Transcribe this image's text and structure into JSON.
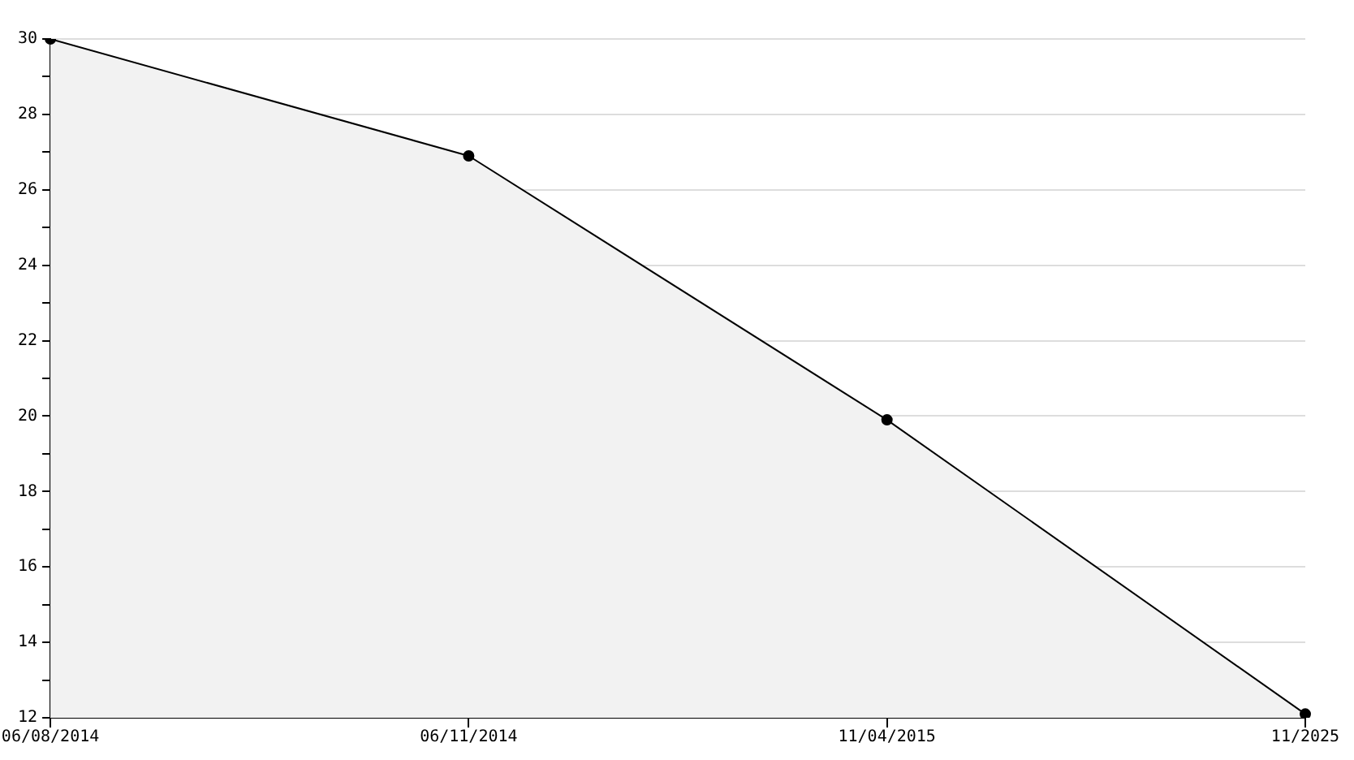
{
  "chart_data": {
    "type": "area",
    "categories": [
      "06/08/2014",
      "06/11/2014",
      "11/04/2015",
      "11/2025"
    ],
    "series": [
      {
        "color": "#000000",
        "values": [
          30,
          26.9,
          19.9,
          12.1
        ]
      }
    ],
    "ylim": [
      12,
      30
    ],
    "yticks": [
      12,
      {
        "value": 13,
        "label": null
      },
      14,
      {
        "value": 15,
        "label": null
      },
      16,
      {
        "value": 17,
        "label": null
      },
      18,
      {
        "value": 19,
        "label": null
      },
      20,
      {
        "value": 21,
        "label": null
      },
      22,
      {
        "value": 23,
        "label": null
      },
      24,
      {
        "value": 25,
        "label": null
      },
      26,
      {
        "value": 27,
        "label": null
      },
      28,
      {
        "value": 29,
        "label": null
      },
      30
    ],
    "grid": "y",
    "legend": false,
    "marker": "circle",
    "line_style": "solid"
  }
}
